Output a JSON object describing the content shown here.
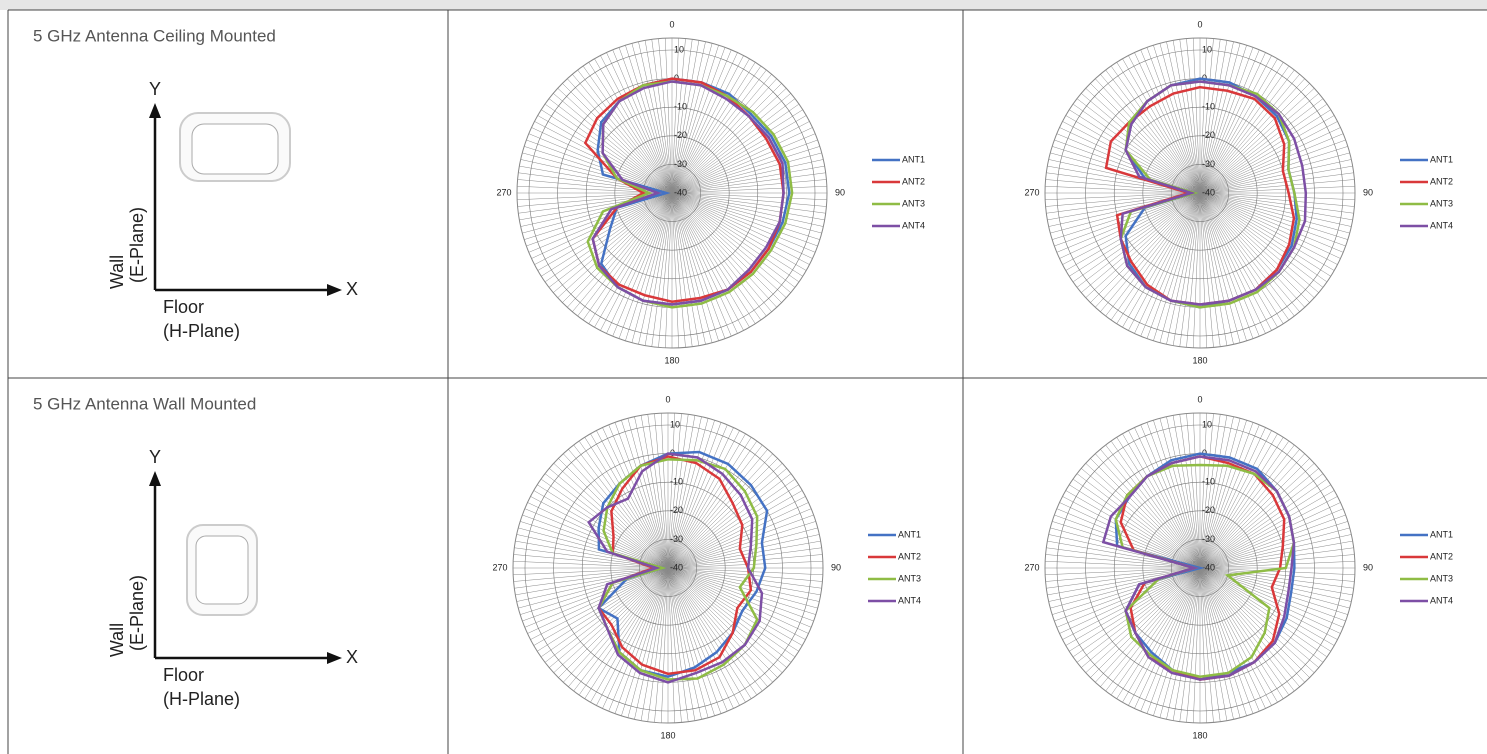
{
  "table": {
    "rows": [
      {
        "title": "5 GHz Antenna Ceiling Mounted",
        "diagram": {
          "y_axis": "Y",
          "x_axis": "X",
          "wall": "Wall",
          "wall_plane": "(E-Plane)",
          "floor": "Floor",
          "floor_plane": "(H-Plane)"
        }
      },
      {
        "title": "5 GHz Antenna Wall Mounted",
        "diagram": {
          "y_axis": "Y",
          "x_axis": "X",
          "wall": "Wall",
          "wall_plane": "(E-Plane)",
          "floor": "Floor",
          "floor_plane": "(H-Plane)"
        }
      }
    ]
  },
  "chart_data": [
    {
      "type": "polar",
      "theta": [
        0,
        15,
        30,
        45,
        60,
        75,
        90,
        105,
        120,
        135,
        150,
        165,
        180,
        195,
        210,
        225,
        240,
        255,
        270,
        285,
        300,
        315,
        330,
        345
      ],
      "rlim": [
        -40,
        10
      ],
      "rticks": [
        -40,
        -30,
        -20,
        -10,
        0,
        10
      ],
      "thetaticks": [
        0,
        90,
        180,
        270
      ],
      "legend": "right",
      "series": [
        {
          "name": "ANT1",
          "color": "#4472c4",
          "values": [
            0,
            0,
            0,
            -1,
            0,
            1,
            1,
            0,
            -1,
            -1,
            -1,
            -1,
            -1,
            -1,
            -2,
            -5,
            -15,
            -20,
            -38,
            -15,
            -10,
            -5,
            -3,
            -1
          ]
        },
        {
          "name": "ANT2",
          "color": "#d9383a",
          "values": [
            0,
            0,
            -1,
            -2,
            -2,
            -1,
            -1,
            -1,
            -1,
            -1,
            -1,
            -2,
            -2,
            -3,
            -3,
            -4,
            -8,
            -20,
            -30,
            -20,
            -5,
            -3,
            -2,
            -1
          ]
        },
        {
          "name": "ANT3",
          "color": "#8fbc45",
          "values": [
            -1,
            -1,
            -1,
            0,
            1,
            2,
            2,
            1,
            0,
            0,
            0,
            0,
            0,
            -1,
            -2,
            -3,
            -6,
            -15,
            -32,
            -20,
            -12,
            -6,
            -3,
            -1
          ]
        },
        {
          "name": "ANT4",
          "color": "#7d4fa5",
          "values": [
            -1,
            -1,
            -2,
            -2,
            -1,
            0,
            -1,
            -1,
            -2,
            -2,
            -1,
            -1,
            -1,
            -1,
            -2,
            -4,
            -8,
            -18,
            -35,
            -22,
            -12,
            -6,
            -3,
            -2
          ]
        }
      ]
    },
    {
      "type": "polar",
      "theta": [
        0,
        15,
        30,
        45,
        60,
        75,
        90,
        105,
        120,
        135,
        150,
        165,
        180,
        195,
        210,
        225,
        240,
        255,
        270,
        285,
        300,
        315,
        330,
        345
      ],
      "rlim": [
        -40,
        10
      ],
      "rticks": [
        -40,
        -30,
        -20,
        -10,
        0,
        10
      ],
      "thetaticks": [
        0,
        90,
        180,
        270
      ],
      "legend": "right",
      "series": [
        {
          "name": "ANT1",
          "color": "#4472c4",
          "values": [
            0,
            0,
            -1,
            -2,
            -4,
            -8,
            -7,
            -5,
            -3,
            -2,
            -1,
            -1,
            0,
            -1,
            -2,
            -5,
            -10,
            -20,
            -38,
            -20,
            -10,
            -6,
            -3,
            -1
          ]
        },
        {
          "name": "ANT2",
          "color": "#d9383a",
          "values": [
            -3,
            -3,
            -2,
            -3,
            -6,
            -10,
            -9,
            -6,
            -4,
            -2,
            -1,
            -1,
            -1,
            -1,
            -3,
            -6,
            -8,
            -10,
            -36,
            -6,
            -4,
            -5,
            -5,
            -4
          ]
        },
        {
          "name": "ANT3",
          "color": "#8fbc45",
          "values": [
            -1,
            -1,
            0,
            -1,
            -4,
            -8,
            -7,
            -4,
            -2,
            -1,
            0,
            0,
            0,
            -1,
            -2,
            -4,
            -8,
            -15,
            -38,
            -22,
            -10,
            -5,
            -3,
            -1
          ]
        },
        {
          "name": "ANT4",
          "color": "#7d4fa5",
          "values": [
            -1,
            -1,
            -1,
            -1,
            -2,
            -3,
            -3,
            -2,
            -2,
            -1,
            -1,
            -1,
            -1,
            -1,
            -2,
            -4,
            -8,
            -12,
            -37,
            -18,
            -10,
            -6,
            -3,
            -1
          ]
        }
      ]
    },
    {
      "type": "polar",
      "theta": [
        0,
        15,
        30,
        45,
        60,
        75,
        90,
        105,
        120,
        135,
        150,
        165,
        180,
        195,
        210,
        225,
        240,
        255,
        270,
        285,
        300,
        315,
        330,
        345
      ],
      "rlim": [
        -40,
        10
      ],
      "rticks": [
        -40,
        -30,
        -20,
        -10,
        0,
        10
      ],
      "thetaticks": [
        0,
        90,
        180,
        270
      ],
      "legend": "right",
      "series": [
        {
          "name": "ANT1",
          "color": "#4472c4",
          "values": [
            0,
            2,
            2,
            1,
            0,
            -6,
            -6,
            -8,
            -10,
            -8,
            -6,
            -4,
            -2,
            -3,
            -6,
            -15,
            -12,
            -25,
            -38,
            -15,
            -12,
            -8,
            -6,
            -3
          ]
        },
        {
          "name": "ANT2",
          "color": "#d9383a",
          "values": [
            -1,
            -2,
            -4,
            -8,
            -10,
            -14,
            -12,
            -10,
            -12,
            -8,
            -4,
            -3,
            -3,
            -5,
            -8,
            -12,
            -12,
            -20,
            -35,
            -20,
            -18,
            -12,
            -8,
            -3
          ]
        },
        {
          "name": "ANT3",
          "color": "#8fbc45",
          "values": [
            -2,
            -1,
            0,
            -2,
            -4,
            -8,
            -10,
            -14,
            -4,
            -2,
            -1,
            0,
            -1,
            -3,
            -6,
            -10,
            -12,
            -20,
            -38,
            -20,
            -14,
            -10,
            -6,
            -3
          ]
        },
        {
          "name": "ANT4",
          "color": "#7d4fa5",
          "values": [
            0,
            0,
            -2,
            -4,
            -6,
            -10,
            -12,
            -6,
            -3,
            -2,
            -2,
            -2,
            0,
            -2,
            -5,
            -10,
            -12,
            -18,
            -36,
            -18,
            -8,
            -10,
            -12,
            -5
          ]
        }
      ]
    },
    {
      "type": "polar",
      "theta": [
        0,
        15,
        30,
        45,
        60,
        75,
        90,
        105,
        120,
        135,
        150,
        165,
        180,
        195,
        210,
        225,
        240,
        255,
        270,
        285,
        300,
        315,
        330,
        345
      ],
      "rlim": [
        -40,
        10
      ],
      "rticks": [
        -40,
        -30,
        -20,
        -10,
        0,
        10
      ],
      "thetaticks": [
        0,
        90,
        180,
        270
      ],
      "legend": "right",
      "series": [
        {
          "name": "ANT1",
          "color": "#4472c4",
          "values": [
            0,
            0,
            0,
            -2,
            -4,
            -6,
            -7,
            -7,
            -5,
            -3,
            -2,
            -2,
            -1,
            -3,
            -6,
            -8,
            -10,
            -18,
            -40,
            -10,
            -6,
            -5,
            -3,
            -1
          ]
        },
        {
          "name": "ANT2",
          "color": "#d9383a",
          "values": [
            -1,
            -2,
            -2,
            -4,
            -6,
            -10,
            -12,
            -14,
            -8,
            -4,
            -2,
            -1,
            -1,
            -3,
            -4,
            -8,
            -12,
            -20,
            -38,
            -16,
            -8,
            -4,
            -3,
            -2
          ]
        },
        {
          "name": "ANT3",
          "color": "#8fbc45",
          "values": [
            -4,
            -3,
            -2,
            -2,
            -4,
            -6,
            -10,
            -30,
            -12,
            -8,
            -4,
            -2,
            -2,
            -3,
            -5,
            -6,
            -10,
            -25,
            -38,
            -12,
            -6,
            -4,
            -3,
            -3
          ]
        },
        {
          "name": "ANT4",
          "color": "#7d4fa5",
          "values": [
            -1,
            -1,
            -1,
            -2,
            -4,
            -6,
            -8,
            -8,
            -6,
            -3,
            -2,
            -1,
            -1,
            -2,
            -4,
            -8,
            -10,
            -18,
            -38,
            -5,
            -4,
            -5,
            -3,
            -2
          ]
        }
      ]
    }
  ]
}
